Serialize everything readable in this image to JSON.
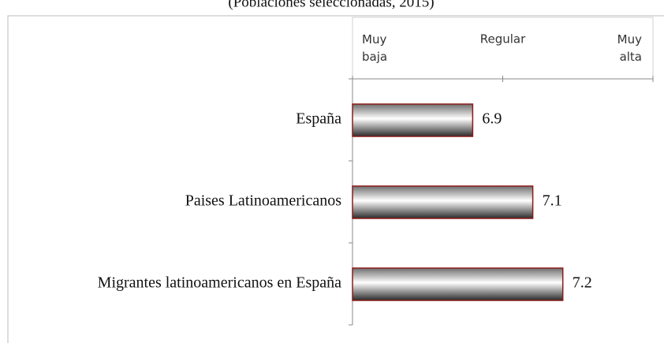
{
  "chart_data": {
    "type": "bar",
    "orientation": "horizontal",
    "subtitle": "(Poblaciones seleccionadas, 2015)",
    "categories": [
      "España",
      "Paises Latinoamericanos",
      "Migrantes latinoamericanos en España"
    ],
    "values": [
      6.9,
      7.1,
      7.2
    ],
    "color": "#8b1a1a",
    "xlim": [
      6.5,
      7.5
    ],
    "xticks": [
      {
        "value": 6.5,
        "label": "Muy baja"
      },
      {
        "value": 7,
        "label": "Regular"
      },
      {
        "value": 7.5,
        "label": "Muy alta"
      }
    ]
  }
}
